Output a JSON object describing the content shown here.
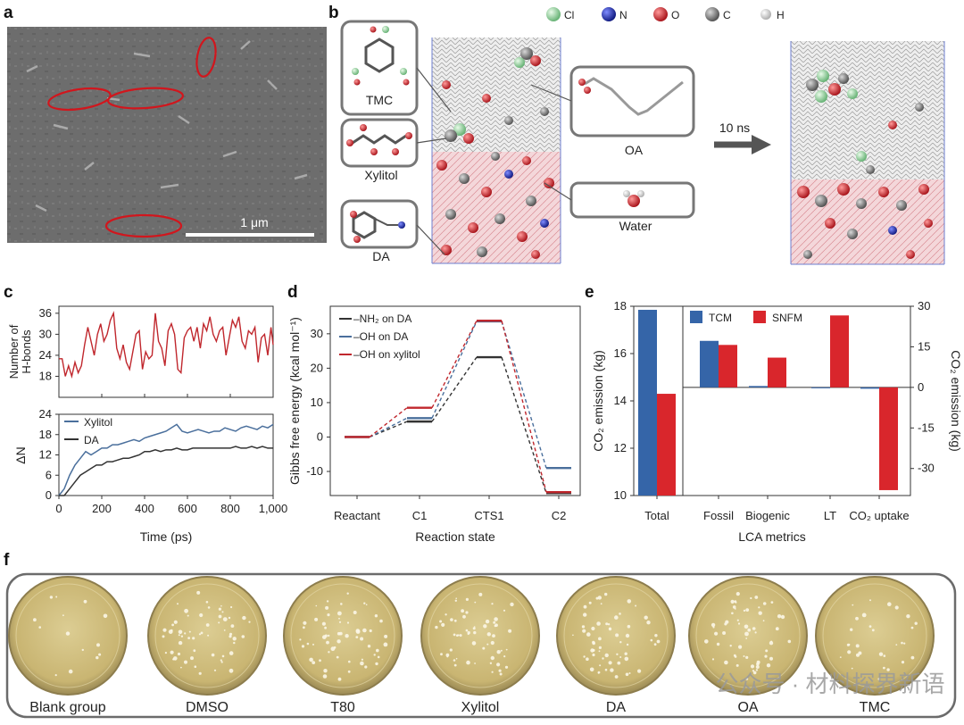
{
  "figure": {
    "panel_a": {
      "letter": "a",
      "scalebar_label": "1 μm"
    },
    "panel_b": {
      "letter": "b",
      "legend": [
        "Cl",
        "N",
        "O",
        "C",
        "H"
      ],
      "legend_colors": [
        "#9be0a8",
        "#1a2fb5",
        "#d31d25",
        "#6a6a6a",
        "#f2f2f2"
      ],
      "molecules": [
        "TMC",
        "Xylitol",
        "DA",
        "OA",
        "Water"
      ],
      "arrow_label": "10 ns"
    },
    "panel_c": {
      "letter": "c"
    },
    "panel_d": {
      "letter": "d"
    },
    "panel_e": {
      "letter": "e"
    },
    "panel_f": {
      "letter": "f",
      "plates": [
        "Blank group",
        "DMSO",
        "T80",
        "Xylitol",
        "DA",
        "OA",
        "TMC"
      ],
      "watermark": "公众号 · 材料探界新语"
    }
  },
  "chart_data": [
    {
      "id": "c_top",
      "type": "line",
      "ylabel": "Number of H-bonds",
      "ylim": [
        12,
        38
      ],
      "yticks": [
        18,
        24,
        30,
        36
      ],
      "xlim": [
        0,
        1000
      ],
      "series": [
        {
          "name": "H-bonds",
          "color": "#c0272d",
          "x": [
            0,
            15,
            30,
            45,
            60,
            75,
            90,
            105,
            120,
            135,
            150,
            165,
            180,
            195,
            210,
            225,
            240,
            255,
            270,
            285,
            300,
            315,
            330,
            345,
            360,
            375,
            390,
            405,
            420,
            435,
            450,
            465,
            480,
            495,
            510,
            525,
            540,
            555,
            570,
            585,
            600,
            615,
            630,
            645,
            660,
            675,
            690,
            705,
            720,
            735,
            750,
            765,
            780,
            795,
            810,
            825,
            840,
            855,
            870,
            885,
            900,
            915,
            930,
            945,
            960,
            975,
            990,
            1000
          ],
          "y": [
            23,
            23,
            18,
            21,
            18,
            22,
            19,
            21,
            27,
            32,
            28,
            24,
            30,
            33,
            28,
            30,
            34,
            36,
            26,
            23,
            27,
            22,
            20,
            25,
            30,
            31,
            20,
            25,
            23,
            24,
            36,
            28,
            26,
            21,
            31,
            33,
            30,
            20,
            19,
            29,
            31,
            32,
            28,
            32,
            26,
            33,
            31,
            35,
            30,
            28,
            31,
            32,
            24,
            29,
            34,
            32,
            35,
            28,
            26,
            31,
            30,
            32,
            22,
            29,
            30,
            24,
            32,
            27
          ]
        }
      ]
    },
    {
      "id": "c_bottom",
      "type": "line",
      "xlabel": "Time (ps)",
      "ylabel": "ΔN",
      "xlim": [
        0,
        1000
      ],
      "ylim": [
        0,
        24
      ],
      "xticks": [
        0,
        200,
        400,
        600,
        800,
        1000
      ],
      "xticklabels": [
        "0",
        "200",
        "400",
        "600",
        "800",
        "1,000"
      ],
      "yticks": [
        0,
        6,
        12,
        18,
        24
      ],
      "series": [
        {
          "name": "Xylitol",
          "color": "#4a6f9c",
          "x": [
            0,
            25,
            50,
            75,
            100,
            125,
            150,
            175,
            200,
            225,
            250,
            275,
            300,
            325,
            350,
            375,
            400,
            425,
            450,
            475,
            500,
            525,
            550,
            575,
            600,
            625,
            650,
            675,
            700,
            725,
            750,
            775,
            800,
            825,
            850,
            875,
            900,
            925,
            950,
            975,
            1000
          ],
          "y": [
            0,
            2,
            6,
            9,
            11,
            13,
            12,
            13,
            14,
            14,
            15,
            15,
            15.5,
            16,
            16.5,
            16,
            17,
            17.5,
            18,
            18.5,
            19,
            20,
            21,
            19,
            18.5,
            19,
            19.5,
            19,
            18.5,
            19,
            19,
            20,
            19.5,
            19,
            20,
            20.5,
            20,
            19.5,
            20.5,
            20,
            21
          ]
        },
        {
          "name": "DA",
          "color": "#333333",
          "x": [
            0,
            25,
            50,
            75,
            100,
            125,
            150,
            175,
            200,
            225,
            250,
            275,
            300,
            325,
            350,
            375,
            400,
            425,
            450,
            475,
            500,
            525,
            550,
            575,
            600,
            625,
            650,
            675,
            700,
            725,
            750,
            775,
            800,
            825,
            850,
            875,
            900,
            925,
            950,
            975,
            1000
          ],
          "y": [
            0,
            0,
            2,
            4,
            6,
            7,
            8,
            9,
            9,
            10,
            10,
            10.5,
            11,
            11,
            11.5,
            12,
            13,
            13,
            13.5,
            13,
            13.5,
            13.5,
            14,
            13.5,
            13.5,
            14,
            14,
            14,
            14,
            14,
            14,
            14,
            14,
            14.5,
            14,
            14,
            14.5,
            14,
            14.5,
            14,
            14
          ]
        }
      ]
    },
    {
      "id": "d",
      "type": "line",
      "xlabel": "Reaction state",
      "ylabel": "Gibbs free energy (kcal mol⁻¹)",
      "categories": [
        "Reactant",
        "C1",
        "CTS1",
        "C2"
      ],
      "ylim": [
        -17,
        38
      ],
      "yticks": [
        -10,
        0,
        10,
        20,
        30
      ],
      "series": [
        {
          "name": "–NH₂ on DA",
          "color": "#333333",
          "values": [
            0,
            4.5,
            23.2,
            -16.3
          ]
        },
        {
          "name": "–OH on DA",
          "color": "#4a6f9c",
          "values": [
            0,
            5.5,
            33.6,
            -9.0
          ]
        },
        {
          "name": "–OH on xylitol",
          "color": "#c0272d",
          "values": [
            0,
            8.5,
            33.8,
            -16.0
          ]
        }
      ]
    },
    {
      "id": "e",
      "type": "bar",
      "xlabel": "LCA metrics",
      "ylabel_left": "CO₂ emission (kg)",
      "ylabel_right": "CO₂ emission (kg)",
      "categories": [
        "Total",
        "Fossil",
        "Biogenic",
        "LT",
        "CO₂ uptake"
      ],
      "left_ylim": [
        10,
        18
      ],
      "left_yticks": [
        10,
        12,
        14,
        16,
        18
      ],
      "right_ylim": [
        -40,
        30
      ],
      "right_yticks": [
        -30,
        -15,
        0,
        15,
        30
      ],
      "series": [
        {
          "name": "TCM",
          "color": "#3565a8",
          "values": [
            17.85,
            17.2,
            0.5,
            0,
            -0.5
          ]
        },
        {
          "name": "SNFM",
          "color": "#d9262c",
          "values": [
            14.3,
            15.7,
            11.0,
            26.6,
            -38.0
          ]
        }
      ]
    }
  ]
}
